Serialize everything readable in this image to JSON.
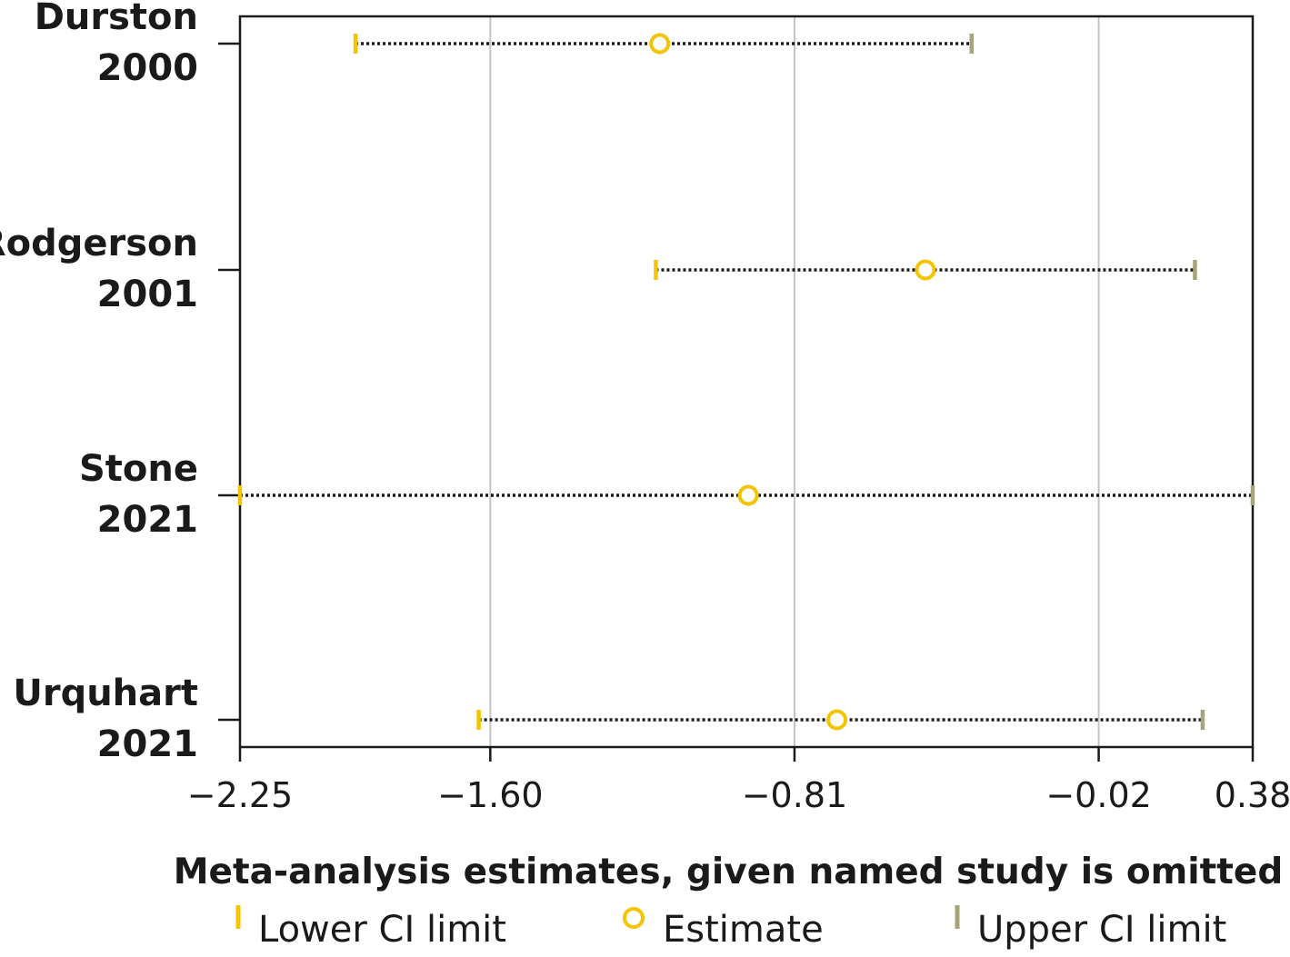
{
  "chart_data": {
    "type": "forest",
    "xlabel": "Meta-analysis estimates, given named study is omitted",
    "xlim": [
      -2.25,
      0.38
    ],
    "x_ticks": [
      -2.25,
      -1.6,
      -0.81,
      -0.02,
      0.38
    ],
    "x_tick_labels": [
      "−2.25",
      "−1.60",
      "−0.81",
      "−0.02",
      "0.38"
    ],
    "grid_x": [
      -1.6,
      -0.81,
      -0.02
    ],
    "studies": [
      {
        "name": "Durston",
        "year": "2000",
        "lower": -1.95,
        "estimate": -1.16,
        "upper": -0.35
      },
      {
        "name": "Rodgerson",
        "year": "2001",
        "lower": -1.17,
        "estimate": -0.47,
        "upper": 0.23
      },
      {
        "name": "Stone",
        "year": "2021",
        "lower": -2.25,
        "estimate": -0.93,
        "upper": 0.38
      },
      {
        "name": "Urquhart",
        "year": "2021",
        "lower": -1.63,
        "estimate": -0.7,
        "upper": 0.25
      }
    ],
    "legend": {
      "placement": "bottom",
      "entries": [
        {
          "key": "lower",
          "label": "Lower CI limit"
        },
        {
          "key": "estimate",
          "label": "Estimate"
        },
        {
          "key": "upper",
          "label": "Upper CI limit"
        }
      ]
    },
    "colors": {
      "lower": "#f5c400",
      "estimate": "#f5c400",
      "upper": "#a6a47a",
      "grid": "#c4c4c4",
      "axis": "#1a1a1a",
      "connector": "#1a1a1a"
    }
  }
}
